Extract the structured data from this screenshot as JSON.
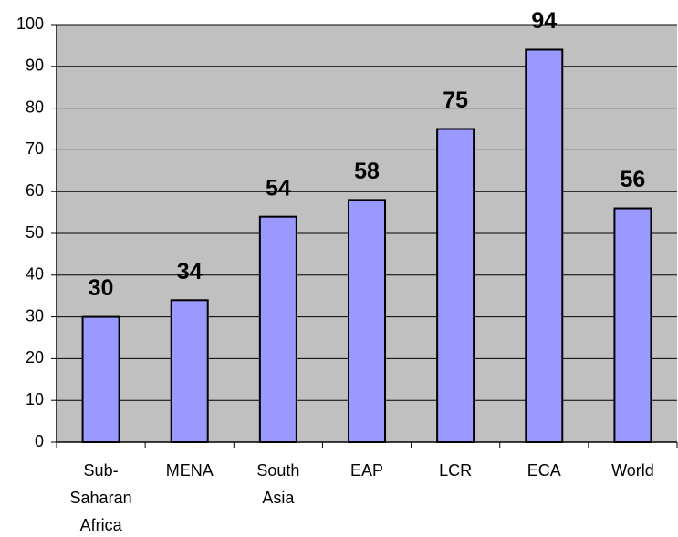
{
  "chart_data": {
    "type": "bar",
    "categories": [
      "Sub-Saharan Africa",
      "MENA",
      "South Asia",
      "EAP",
      "LCR",
      "ECA",
      "World"
    ],
    "values": [
      30,
      34,
      54,
      58,
      75,
      94,
      56
    ],
    "color": "#9999ff",
    "ylim": [
      0,
      100
    ],
    "yticks": [
      0,
      10,
      20,
      30,
      40,
      50,
      60,
      70,
      80,
      90,
      100
    ],
    "grid": true
  }
}
